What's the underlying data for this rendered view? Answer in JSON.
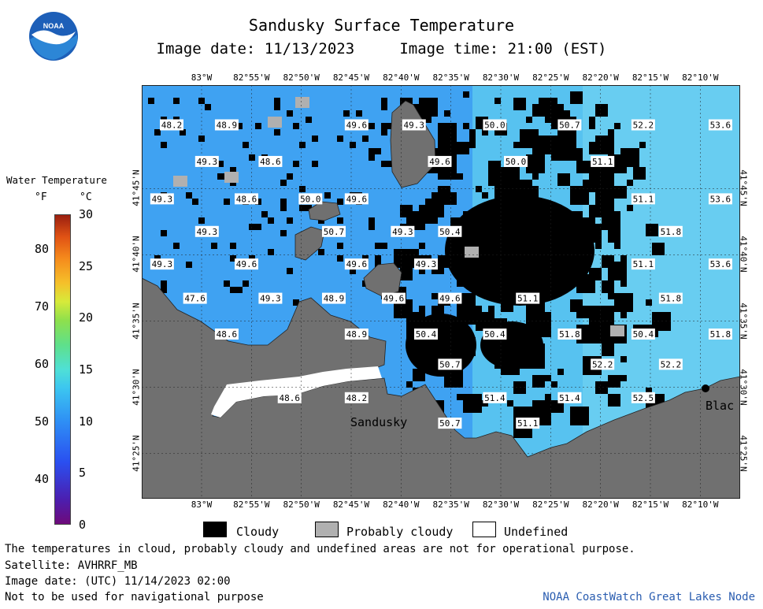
{
  "header": {
    "title": "Sandusky Surface Temperature",
    "subtitle": "Image date: 11/13/2023     Image time: 21:00 (EST)",
    "logo_text": "NOAA"
  },
  "legend": {
    "title": "Water Temperature",
    "unit_f": "°F",
    "unit_c": "°C",
    "f_ticks": [
      {
        "v": 80
      },
      {
        "v": 70
      },
      {
        "v": 60
      },
      {
        "v": 50
      },
      {
        "v": 40
      }
    ],
    "c_ticks": [
      {
        "v": 30
      },
      {
        "v": 25
      },
      {
        "v": 20
      },
      {
        "v": 15
      },
      {
        "v": 10
      },
      {
        "v": 5
      },
      {
        "v": 0
      }
    ],
    "c_range": [
      0,
      30
    ]
  },
  "map": {
    "lon_labels": [
      "83°W",
      "82°55'W",
      "82°50'W",
      "82°45'W",
      "82°40'W",
      "82°35'W",
      "82°30'W",
      "82°25'W",
      "82°20'W",
      "82°15'W",
      "82°10'W"
    ],
    "lat_labels": [
      "41°45'N",
      "41°40'N",
      "41°35'N",
      "41°30'N",
      "41°25'N"
    ],
    "place_labels": [
      "Sandusky",
      "Blac"
    ],
    "temperature_readings": [
      {
        "v": "48.2",
        "lon": -83.05,
        "lat": 41.83
      },
      {
        "v": "48.9",
        "lon": -82.958,
        "lat": 41.83
      },
      {
        "v": "49.6",
        "lon": -82.741,
        "lat": 41.83
      },
      {
        "v": "49.3",
        "lon": -82.645,
        "lat": 41.83
      },
      {
        "v": "50.0",
        "lon": -82.51,
        "lat": 41.83
      },
      {
        "v": "50.7",
        "lon": -82.385,
        "lat": 41.83
      },
      {
        "v": "52.2",
        "lon": -82.262,
        "lat": 41.83
      },
      {
        "v": "53.6",
        "lon": -82.133,
        "lat": 41.83
      },
      {
        "v": "49.3",
        "lon": -82.991,
        "lat": 41.784
      },
      {
        "v": "48.6",
        "lon": -82.885,
        "lat": 41.784
      },
      {
        "v": "49.6",
        "lon": -82.602,
        "lat": 41.784
      },
      {
        "v": "50.0",
        "lon": -82.475,
        "lat": 41.784
      },
      {
        "v": "51.1",
        "lon": -82.33,
        "lat": 41.784
      },
      {
        "v": "49.3",
        "lon": -83.066,
        "lat": 41.737
      },
      {
        "v": "48.6",
        "lon": -82.925,
        "lat": 41.737
      },
      {
        "v": "50.0",
        "lon": -82.818,
        "lat": 41.737
      },
      {
        "v": "49.6",
        "lon": -82.741,
        "lat": 41.737
      },
      {
        "v": "51.1",
        "lon": -82.262,
        "lat": 41.737
      },
      {
        "v": "53.6",
        "lon": -82.133,
        "lat": 41.737
      },
      {
        "v": "49.3",
        "lon": -82.991,
        "lat": 41.696
      },
      {
        "v": "50.7",
        "lon": -82.779,
        "lat": 41.696
      },
      {
        "v": "49.3",
        "lon": -82.664,
        "lat": 41.696
      },
      {
        "v": "50.4",
        "lon": -82.585,
        "lat": 41.696
      },
      {
        "v": "51.8",
        "lon": -82.216,
        "lat": 41.696
      },
      {
        "v": "49.3",
        "lon": -83.066,
        "lat": 41.655
      },
      {
        "v": "49.6",
        "lon": -82.925,
        "lat": 41.655
      },
      {
        "v": "49.6",
        "lon": -82.741,
        "lat": 41.655
      },
      {
        "v": "49.3",
        "lon": -82.625,
        "lat": 41.655
      },
      {
        "v": "51.1",
        "lon": -82.262,
        "lat": 41.655
      },
      {
        "v": "53.6",
        "lon": -82.133,
        "lat": 41.655
      },
      {
        "v": "47.6",
        "lon": -83.011,
        "lat": 41.612
      },
      {
        "v": "49.3",
        "lon": -82.885,
        "lat": 41.612
      },
      {
        "v": "48.9",
        "lon": -82.779,
        "lat": 41.612
      },
      {
        "v": "49.6",
        "lon": -82.679,
        "lat": 41.612
      },
      {
        "v": "49.6",
        "lon": -82.585,
        "lat": 41.612
      },
      {
        "v": "51.1",
        "lon": -82.455,
        "lat": 41.612
      },
      {
        "v": "51.8",
        "lon": -82.216,
        "lat": 41.612
      },
      {
        "v": "48.6",
        "lon": -82.958,
        "lat": 41.567
      },
      {
        "v": "48.9",
        "lon": -82.741,
        "lat": 41.567
      },
      {
        "v": "50.4",
        "lon": -82.625,
        "lat": 41.567
      },
      {
        "v": "50.4",
        "lon": -82.51,
        "lat": 41.567
      },
      {
        "v": "51.8",
        "lon": -82.385,
        "lat": 41.567
      },
      {
        "v": "50.4",
        "lon": -82.262,
        "lat": 41.567
      },
      {
        "v": "51.8",
        "lon": -82.133,
        "lat": 41.567
      },
      {
        "v": "50.7",
        "lon": -82.585,
        "lat": 41.529
      },
      {
        "v": "52.2",
        "lon": -82.33,
        "lat": 41.529
      },
      {
        "v": "52.2",
        "lon": -82.216,
        "lat": 41.529
      },
      {
        "v": "48.6",
        "lon": -82.853,
        "lat": 41.487
      },
      {
        "v": "48.2",
        "lon": -82.741,
        "lat": 41.487
      },
      {
        "v": "51.4",
        "lon": -82.51,
        "lat": 41.487
      },
      {
        "v": "51.4",
        "lon": -82.385,
        "lat": 41.487
      },
      {
        "v": "52.5",
        "lon": -82.262,
        "lat": 41.487
      },
      {
        "v": "50.7",
        "lon": -82.585,
        "lat": 41.455
      },
      {
        "v": "51.1",
        "lon": -82.455,
        "lat": 41.455
      }
    ],
    "colors": {
      "water": "#3fa2f2",
      "water_light": "#5cc8f0",
      "land": "#707070",
      "cloud": "#000000",
      "prob_cloud": "#b0b0b0",
      "undefined": "#ffffff"
    }
  },
  "key": {
    "cloudy": "Cloudy",
    "probably_cloudy": "Probably cloudy",
    "undefined": "Undefined"
  },
  "footer": {
    "line1": "The temperatures in cloud, probably cloudy and undefined areas are not for operational purpose.",
    "line2": "Satellite: AVHRRF_MB",
    "line3": "Image date: (UTC) 11/14/2023  02:00",
    "line4": "Not to be used for navigational purpose",
    "credit": "NOAA CoastWatch Great Lakes Node"
  }
}
